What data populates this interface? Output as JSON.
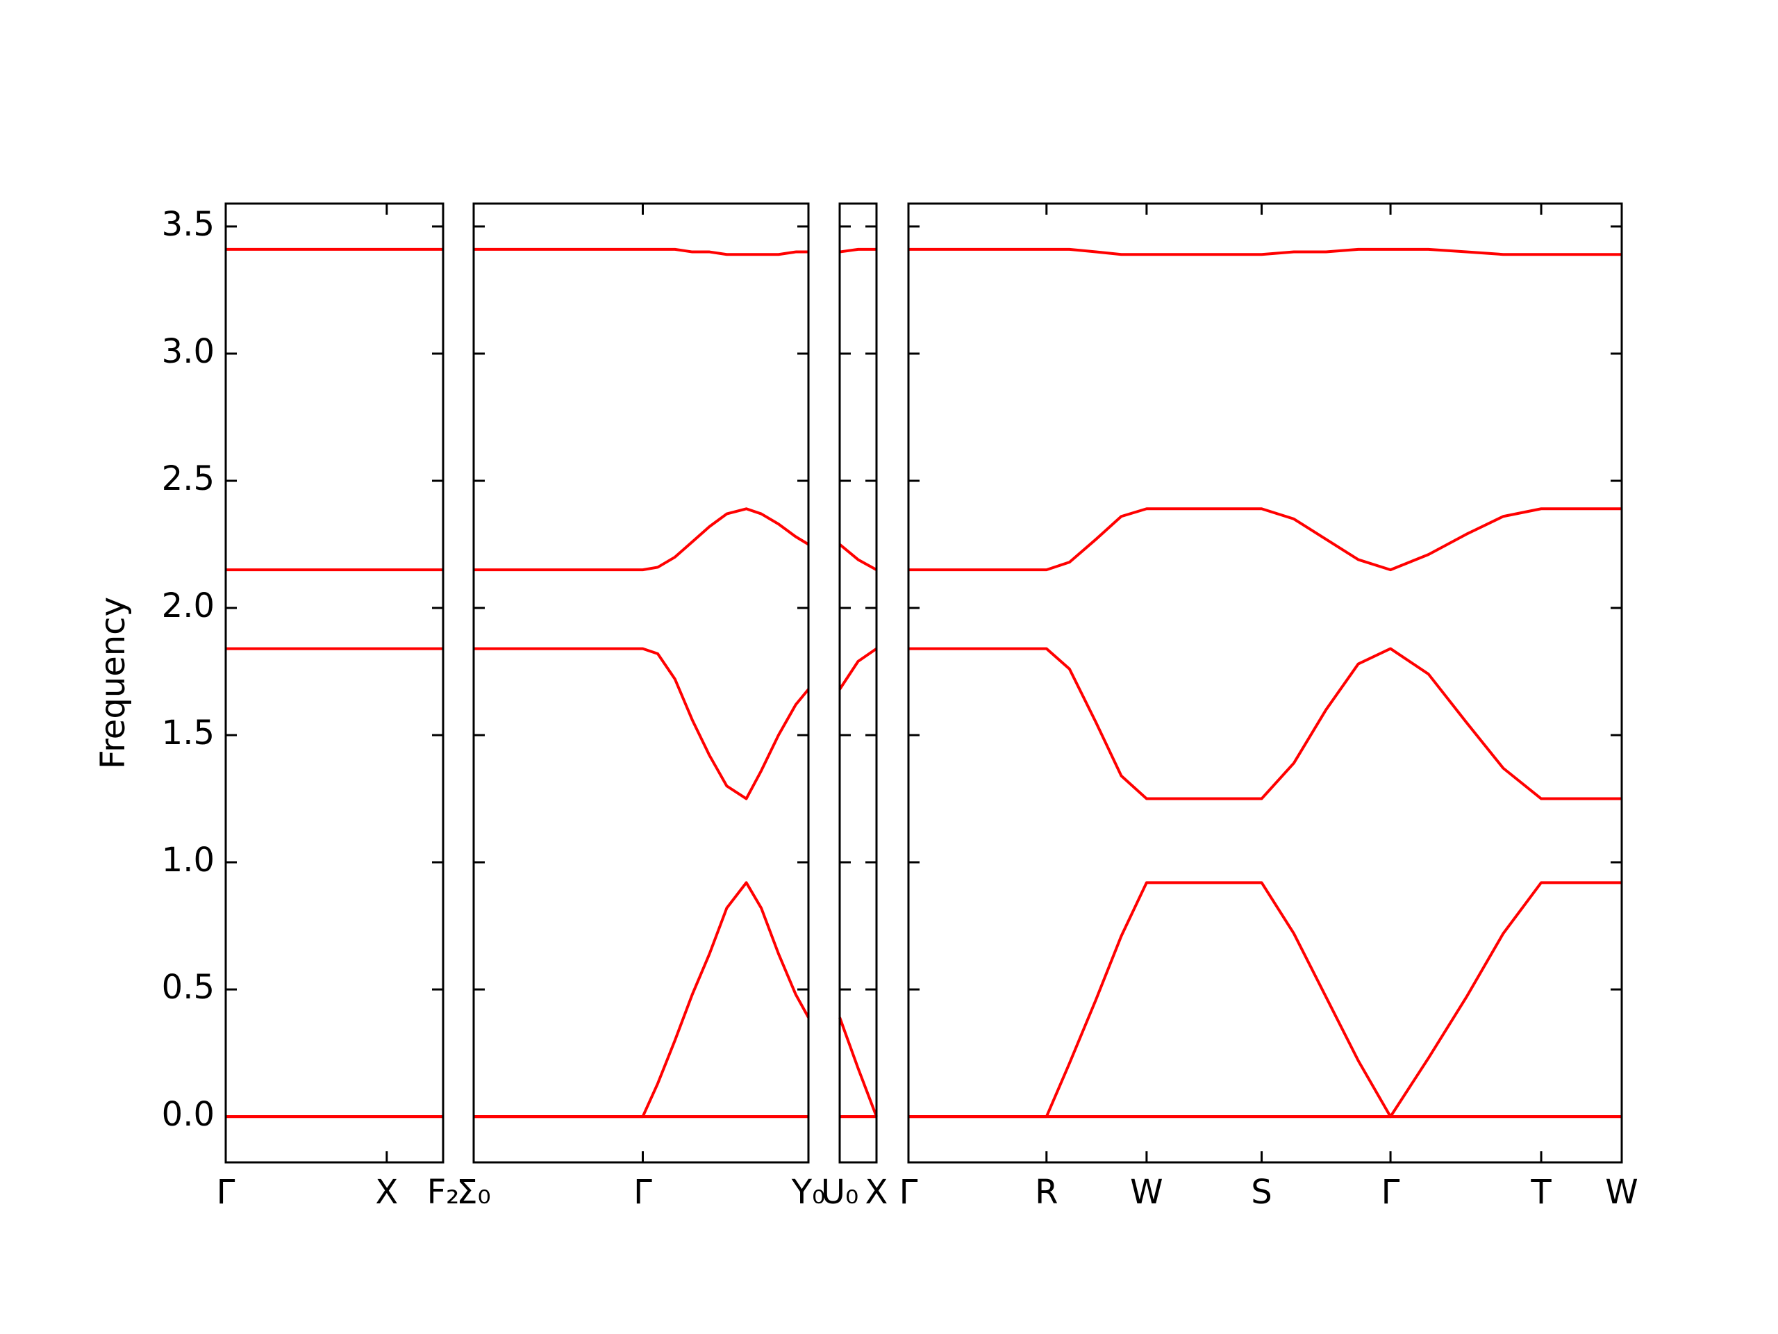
{
  "chart_data": {
    "type": "line",
    "ylabel": "Frequency",
    "ylim": [
      -0.18,
      3.59
    ],
    "yticks": [
      {
        "value": 0,
        "label": "0.0"
      },
      0.5,
      {
        "value": 1,
        "label": "1.0"
      },
      1.5,
      {
        "value": 2,
        "label": "2.0"
      },
      2.5,
      {
        "value": 3,
        "label": "3.0"
      },
      3.5
    ],
    "panels": [
      {
        "xlim": [
          0,
          1.89
        ],
        "xticks": [
          {
            "value": 0,
            "label": "Γ"
          },
          {
            "value": 1.4,
            "label": "X"
          },
          {
            "value": 1.89,
            "label": "F₂"
          }
        ],
        "x": [
          0,
          1.89
        ],
        "series": [
          {
            "color": "#ff0000",
            "values": [
              3.41,
              3.41
            ]
          },
          {
            "color": "#ff0000",
            "values": [
              2.15,
              2.15
            ]
          },
          {
            "color": "#ff0000",
            "values": [
              1.84,
              1.84
            ]
          },
          {
            "color": "#ff0000",
            "values": [
              0,
              0
            ]
          },
          {
            "color": "#ff0000",
            "values": [
              0,
              0
            ]
          }
        ]
      },
      {
        "xlim": [
          0,
          2.91
        ],
        "xticks": [
          {
            "value": 0,
            "label": "Σ₀"
          },
          {
            "value": 1.47,
            "label": "Γ"
          },
          {
            "value": 2.91,
            "label": "Y₀"
          }
        ],
        "x": [
          0,
          1.47,
          1.6,
          1.75,
          1.9,
          2.05,
          2.2,
          2.37,
          2.5,
          2.65,
          2.8,
          2.91
        ],
        "series": [
          {
            "color": "#ff0000",
            "values": [
              3.41,
              3.41,
              3.41,
              3.41,
              3.4,
              3.4,
              3.39,
              3.39,
              3.39,
              3.39,
              3.4,
              3.4
            ]
          },
          {
            "color": "#ff0000",
            "values": [
              2.15,
              2.15,
              2.16,
              2.2,
              2.26,
              2.32,
              2.37,
              2.39,
              2.37,
              2.33,
              2.28,
              2.25
            ]
          },
          {
            "color": "#ff0000",
            "values": [
              1.84,
              1.84,
              1.82,
              1.72,
              1.56,
              1.42,
              1.3,
              1.25,
              1.36,
              1.5,
              1.62,
              1.68
            ]
          },
          {
            "color": "#ff0000",
            "values": [
              0,
              0,
              0.13,
              0.3,
              0.48,
              0.64,
              0.82,
              0.92,
              0.82,
              0.64,
              0.48,
              0.39
            ]
          },
          {
            "color": "#ff0000",
            "values": [
              0,
              0,
              0,
              0,
              0,
              0,
              0,
              0,
              0,
              0,
              0,
              0
            ]
          },
          {
            "color": "#ff0000",
            "values": [
              0,
              0,
              0,
              0,
              0,
              0,
              0,
              0,
              0,
              0,
              0,
              0
            ]
          }
        ]
      },
      {
        "xlim": [
          0,
          0.32
        ],
        "xticks": [
          {
            "value": 0,
            "label": "U₀"
          },
          {
            "value": 0.32,
            "label": "X"
          }
        ],
        "x": [
          0,
          0.16,
          0.32
        ],
        "series": [
          {
            "color": "#ff0000",
            "values": [
              3.4,
              3.41,
              3.41
            ]
          },
          {
            "color": "#ff0000",
            "values": [
              2.25,
              2.19,
              2.15
            ]
          },
          {
            "color": "#ff0000",
            "values": [
              1.68,
              1.79,
              1.84
            ]
          },
          {
            "color": "#ff0000",
            "values": [
              0.39,
              0.19,
              0
            ]
          },
          {
            "color": "#ff0000",
            "values": [
              0,
              0,
              0
            ]
          },
          {
            "color": "#ff0000",
            "values": [
              0,
              0,
              0
            ]
          }
        ]
      },
      {
        "xlim": [
          0,
          6.2
        ],
        "xticks": [
          {
            "value": 0,
            "label": "Γ"
          },
          {
            "value": 1.2,
            "label": "R"
          },
          {
            "value": 2.07,
            "label": "W"
          },
          {
            "value": 3.07,
            "label": "S"
          },
          {
            "value": 4.19,
            "label": "Γ"
          },
          {
            "value": 5.5,
            "label": "T"
          },
          {
            "value": 6.2,
            "label": "W"
          }
        ],
        "x": [
          0,
          1.2,
          1.4,
          1.63,
          1.85,
          2.07,
          3.07,
          3.35,
          3.63,
          3.91,
          4.19,
          4.52,
          4.85,
          5.17,
          5.5,
          6.2
        ],
        "series": [
          {
            "color": "#ff0000",
            "values": [
              3.41,
              3.41,
              3.41,
              3.4,
              3.39,
              3.39,
              3.39,
              3.4,
              3.4,
              3.41,
              3.41,
              3.41,
              3.4,
              3.39,
              3.39,
              3.39
            ]
          },
          {
            "color": "#ff0000",
            "values": [
              2.15,
              2.15,
              2.18,
              2.27,
              2.36,
              2.39,
              2.39,
              2.35,
              2.27,
              2.19,
              2.15,
              2.21,
              2.29,
              2.36,
              2.39,
              2.39
            ]
          },
          {
            "color": "#ff0000",
            "values": [
              1.84,
              1.84,
              1.76,
              1.55,
              1.34,
              1.25,
              1.25,
              1.39,
              1.6,
              1.78,
              1.84,
              1.74,
              1.55,
              1.37,
              1.25,
              1.25
            ]
          },
          {
            "color": "#ff0000",
            "values": [
              0,
              0,
              0.21,
              0.46,
              0.71,
              0.92,
              0.92,
              0.72,
              0.47,
              0.22,
              0,
              0.23,
              0.47,
              0.72,
              0.92,
              0.92
            ]
          },
          {
            "color": "#ff0000",
            "values": [
              0,
              0,
              0,
              0,
              0,
              0,
              0,
              0,
              0,
              0,
              0,
              0,
              0,
              0,
              0,
              0
            ]
          },
          {
            "color": "#ff0000",
            "values": [
              0,
              0,
              0,
              0,
              0,
              0,
              0,
              0,
              0,
              0,
              0,
              0,
              0,
              0,
              0,
              0
            ]
          }
        ]
      }
    ]
  }
}
